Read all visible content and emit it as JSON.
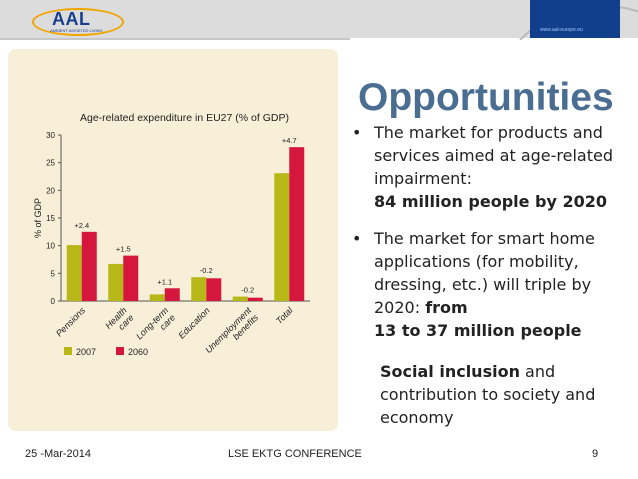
{
  "header": {
    "logo_text": "AAL",
    "logo_subtext": "AMBIENT ASSISTED LIVING",
    "corner_text": "www.aal-europe.eu"
  },
  "slide": {
    "title": "Opportunities",
    "bullet1": {
      "text": "The market for products and services aimed at age-related impairment:",
      "bold": "84 million people by 2020"
    },
    "bullet2": {
      "text": "The market for smart home applications (for mobility, dressing, etc.) will triple by 2020: ",
      "bold_inline": "from",
      "bold_line": "13 to 37 million people"
    },
    "social": {
      "bold": "Social inclusion",
      "text": " and contribution to society and economy"
    }
  },
  "footer": {
    "date": "25 -Mar-2014",
    "conference": "LSE EKTG  CONFERENCE",
    "page": "9"
  },
  "colors": {
    "series_2007": "#b7b817",
    "series_2060": "#d5173d",
    "chart_background": "#f7efd8",
    "title": "#4a6d92",
    "header_band": "#dcdcdc"
  },
  "chart_data": {
    "type": "bar",
    "title": "Age-related expenditure in EU27 (% of GDP)",
    "ylabel": "% of GDP",
    "ylim": [
      0,
      30
    ],
    "yticks": [
      0,
      5,
      10,
      15,
      20,
      25,
      30
    ],
    "categories": [
      "Pensions",
      "Health care",
      "Long-term care",
      "Education",
      "Unemployment benefits",
      "Total"
    ],
    "category_lines": [
      [
        "Pensions"
      ],
      [
        "Health",
        "care"
      ],
      [
        "Long-term",
        "care"
      ],
      [
        "Education"
      ],
      [
        "Unemployment",
        "benefits"
      ],
      [
        "Total"
      ]
    ],
    "series": [
      {
        "name": "2007",
        "values": [
          10.1,
          6.7,
          1.2,
          4.3,
          0.8,
          23.1
        ]
      },
      {
        "name": "2060",
        "values": [
          12.5,
          8.2,
          2.3,
          4.1,
          0.6,
          27.8
        ]
      }
    ],
    "change_labels": [
      "+2.4",
      "+1.5",
      "+1.1",
      "-0.2",
      "-0.2",
      "+4.7"
    ],
    "legend": [
      "2007",
      "2060"
    ],
    "legend_position": "bottom-left",
    "grid": false
  }
}
